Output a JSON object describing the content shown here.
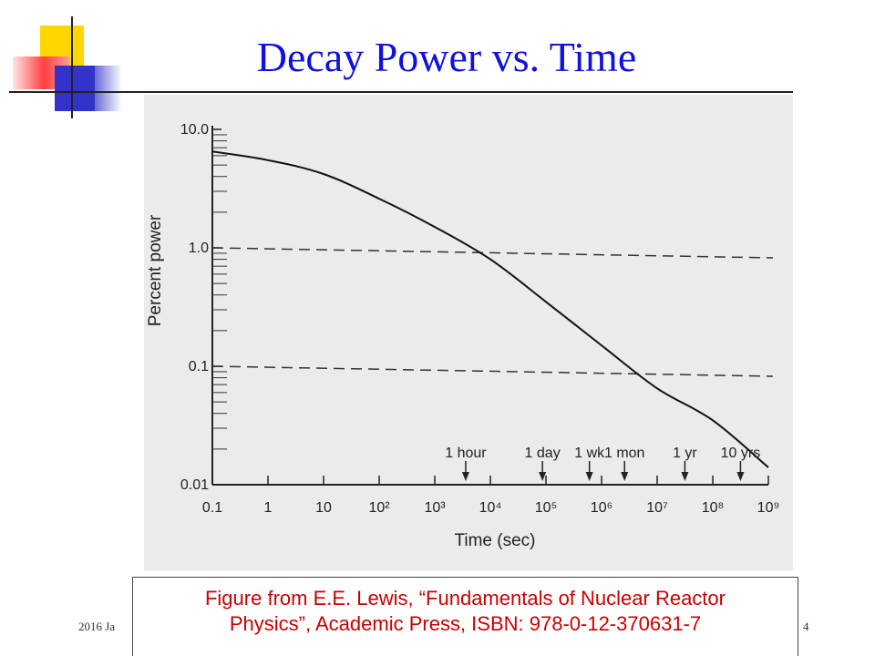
{
  "slide": {
    "title": "Decay Power vs. Time",
    "footer_left": "2016 Ja",
    "footer_right": "4",
    "caption_line1": "Figure from E.E. Lewis, “Fundamentals of Nuclear Reactor",
    "caption_line2": "Physics”, Academic Press, ISBN: 978-0-12-370631-7",
    "colors": {
      "title": "#1010e0",
      "caption": "#cc0000",
      "figure_background": "#ebebeb",
      "deco_yellow": "#ffd700",
      "deco_red": "#ff4040",
      "deco_blue": "#3333cc"
    }
  },
  "chart_data": {
    "type": "line",
    "title": "",
    "xlabel": "Time (sec)",
    "ylabel": "Percent power",
    "x_scale": "log",
    "y_scale": "log",
    "xlim": [
      0.1,
      1000000000
    ],
    "ylim": [
      0.01,
      10.0
    ],
    "x_tick_labels": [
      "0.1",
      "1",
      "10",
      "10²",
      "10³",
      "10⁴",
      "10⁵",
      "10⁶",
      "10⁷",
      "10⁸",
      "10⁹"
    ],
    "x_tick_values": [
      0.1,
      1,
      10,
      100,
      1000,
      10000,
      100000,
      1000000,
      10000000,
      100000000,
      1000000000
    ],
    "y_tick_labels": [
      "10.0",
      "1.0",
      "0.1",
      "0.01"
    ],
    "y_tick_values": [
      10,
      1,
      0.1,
      0.01
    ],
    "grid": false,
    "series": [
      {
        "style": "solid",
        "x": [
          0.1,
          1,
          10,
          100,
          1000,
          10000,
          100000,
          1000000,
          10000000,
          100000000,
          1000000000
        ],
        "y": [
          6.5,
          5.5,
          4.2,
          2.6,
          1.5,
          0.8,
          0.35,
          0.15,
          0.065,
          0.035,
          0.014
        ]
      }
    ],
    "reference_lines": [
      {
        "style": "dashed",
        "y": 1.0
      },
      {
        "style": "dashed",
        "y": 0.1
      }
    ],
    "annotations": [
      {
        "label": "1 hour",
        "x": 3600
      },
      {
        "label": "1 day",
        "x": 86400
      },
      {
        "label": "1 wk",
        "x": 604800
      },
      {
        "label": "1 mon",
        "x": 2592000
      },
      {
        "label": "1 yr",
        "x": 31536000
      },
      {
        "label": "10 yrs",
        "x": 315360000
      }
    ]
  }
}
